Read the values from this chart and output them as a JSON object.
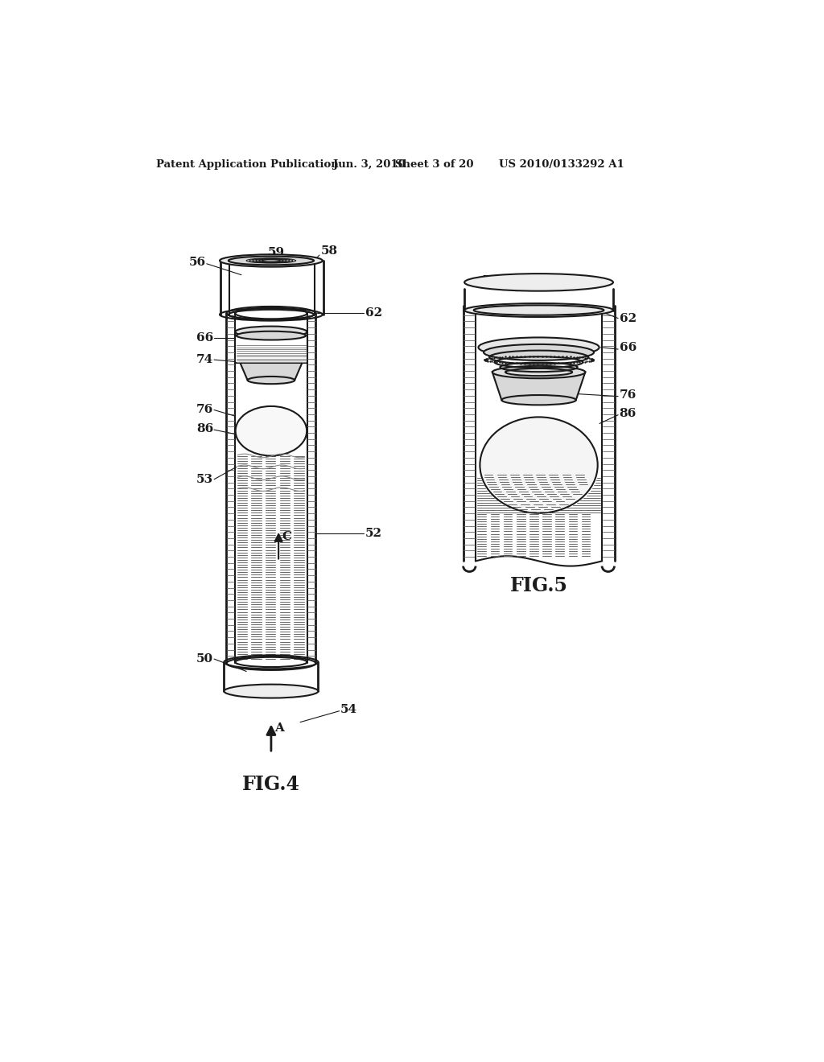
{
  "bg_color": "#ffffff",
  "line_color": "#1a1a1a",
  "header_text": "Patent Application Publication",
  "header_date": "Jun. 3, 2010",
  "header_sheet": "Sheet 3 of 20",
  "header_patent": "US 2010/0133292 A1",
  "fig4_label": "FIG.4",
  "fig5_label": "FIG.5"
}
